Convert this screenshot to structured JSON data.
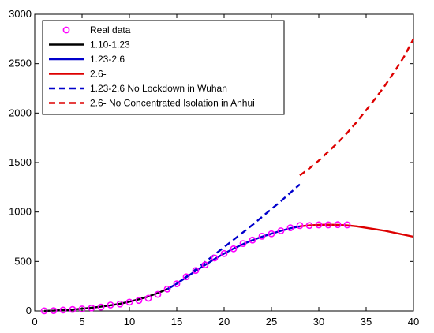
{
  "chart_data": {
    "type": "line",
    "xlim": [
      0,
      40
    ],
    "ylim": [
      0,
      3000
    ],
    "x_ticks": [
      0,
      5,
      10,
      15,
      20,
      25,
      30,
      35,
      40
    ],
    "y_ticks": [
      0,
      500,
      1000,
      1500,
      2000,
      2500,
      3000
    ],
    "grid": false,
    "legend_position": "top-left",
    "series": [
      {
        "name": "Real data",
        "style": "markers",
        "marker": "circle",
        "color": "#ff00ff",
        "x": [
          1,
          2,
          3,
          4,
          5,
          6,
          7,
          8,
          9,
          10,
          11,
          12,
          13,
          14,
          15,
          16,
          17,
          18,
          19,
          20,
          21,
          22,
          23,
          24,
          25,
          26,
          27,
          28,
          29,
          30,
          31,
          32,
          33
        ],
        "y": [
          1,
          3,
          9,
          15,
          20,
          30,
          39,
          60,
          70,
          89,
          106,
          128,
          167,
          221,
          274,
          345,
          409,
          466,
          535,
          580,
          628,
          681,
          716,
          755,
          780,
          810,
          841,
          863,
          864,
          870,
          870,
          872,
          870
        ]
      },
      {
        "name": "1.10-1.23",
        "style": "solid",
        "color": "#000000",
        "x": [
          1,
          2,
          3,
          4,
          5,
          6,
          7,
          8,
          9,
          10,
          11,
          12,
          13,
          14
        ],
        "y": [
          1,
          3,
          8,
          14,
          22,
          32,
          43,
          57,
          73,
          93,
          117,
          146,
          180,
          220
        ]
      },
      {
        "name": "1.23-2.6",
        "style": "solid",
        "color": "#0000cc",
        "x": [
          14,
          15,
          16,
          17,
          18,
          19,
          20,
          21,
          22,
          23,
          24,
          25,
          26,
          27,
          28
        ],
        "y": [
          220,
          275,
          340,
          405,
          465,
          525,
          580,
          630,
          675,
          715,
          750,
          780,
          810,
          835,
          855
        ]
      },
      {
        "name": "2.6-",
        "style": "solid",
        "color": "#dd0000",
        "x": [
          28,
          29,
          30,
          31,
          32,
          33,
          34,
          35,
          36,
          37,
          38,
          39,
          40
        ],
        "y": [
          855,
          865,
          870,
          872,
          870,
          865,
          855,
          840,
          825,
          810,
          790,
          770,
          750
        ]
      },
      {
        "name": "1.23-2.6 No Lockdown in Wuhan",
        "style": "dashed",
        "color": "#0000cc",
        "x": [
          14,
          15,
          16,
          17,
          18,
          19,
          20,
          21,
          22,
          23,
          24,
          25,
          26,
          27,
          28
        ],
        "y": [
          220,
          275,
          345,
          420,
          495,
          570,
          645,
          720,
          795,
          870,
          950,
          1030,
          1110,
          1195,
          1280
        ]
      },
      {
        "name": "2.6- No Concentrated Isolation in Anhui",
        "style": "dashed",
        "color": "#dd0000",
        "x": [
          28,
          29,
          30,
          31,
          32,
          33,
          34,
          35,
          36,
          37,
          38,
          39,
          40
        ],
        "y": [
          1370,
          1440,
          1520,
          1610,
          1700,
          1800,
          1910,
          2030,
          2150,
          2280,
          2420,
          2570,
          2750
        ]
      }
    ]
  }
}
